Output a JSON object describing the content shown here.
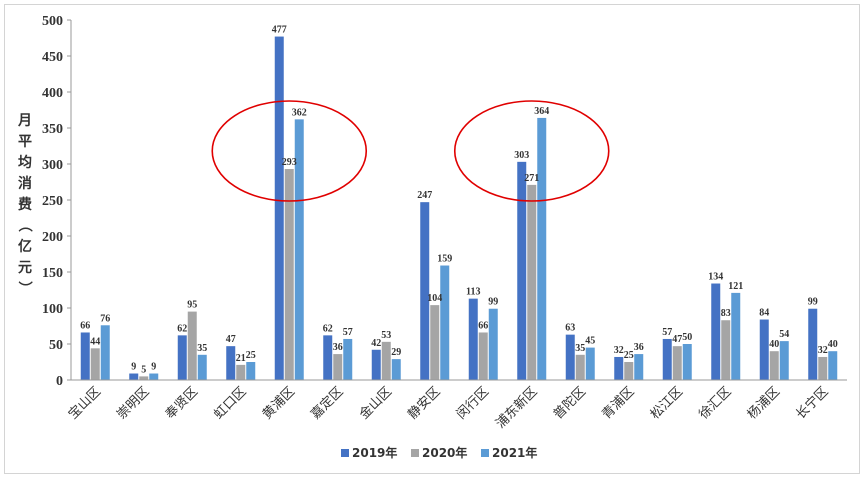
{
  "chart_data": {
    "type": "bar",
    "title": "",
    "xlabel": "",
    "ylabel": "月平均消费（亿元）",
    "ylim": [
      0,
      500
    ],
    "yticks": [
      0,
      50,
      100,
      150,
      200,
      250,
      300,
      350,
      400,
      450,
      500
    ],
    "grid": false,
    "legend": "bottom",
    "categories": [
      "宝山区",
      "崇明区",
      "奉贤区",
      "虹口区",
      "黄浦区",
      "嘉定区",
      "金山区",
      "静安区",
      "闵行区",
      "浦东新区",
      "普陀区",
      "青浦区",
      "松江区",
      "徐汇区",
      "杨浦区",
      "长宁区"
    ],
    "series": [
      {
        "name": "2019年",
        "color": "#4472C4",
        "values": [
          66,
          9,
          62,
          47,
          477,
          62,
          42,
          247,
          113,
          303,
          63,
          32,
          57,
          134,
          84,
          99
        ]
      },
      {
        "name": "2020年",
        "color": "#A5A5A5",
        "values": [
          44,
          5,
          95,
          21,
          293,
          36,
          53,
          104,
          66,
          271,
          35,
          25,
          47,
          83,
          40,
          32
        ]
      },
      {
        "name": "2021年",
        "color": "#5B9BD5",
        "values": [
          76,
          9,
          35,
          25,
          362,
          57,
          29,
          159,
          99,
          364,
          45,
          36,
          50,
          121,
          54,
          40
        ]
      }
    ],
    "annotations": [
      {
        "type": "ellipse",
        "around_category": "黄浦区",
        "color": "#E00000"
      },
      {
        "type": "ellipse",
        "around_category": "浦东新区",
        "color": "#E00000"
      }
    ]
  }
}
